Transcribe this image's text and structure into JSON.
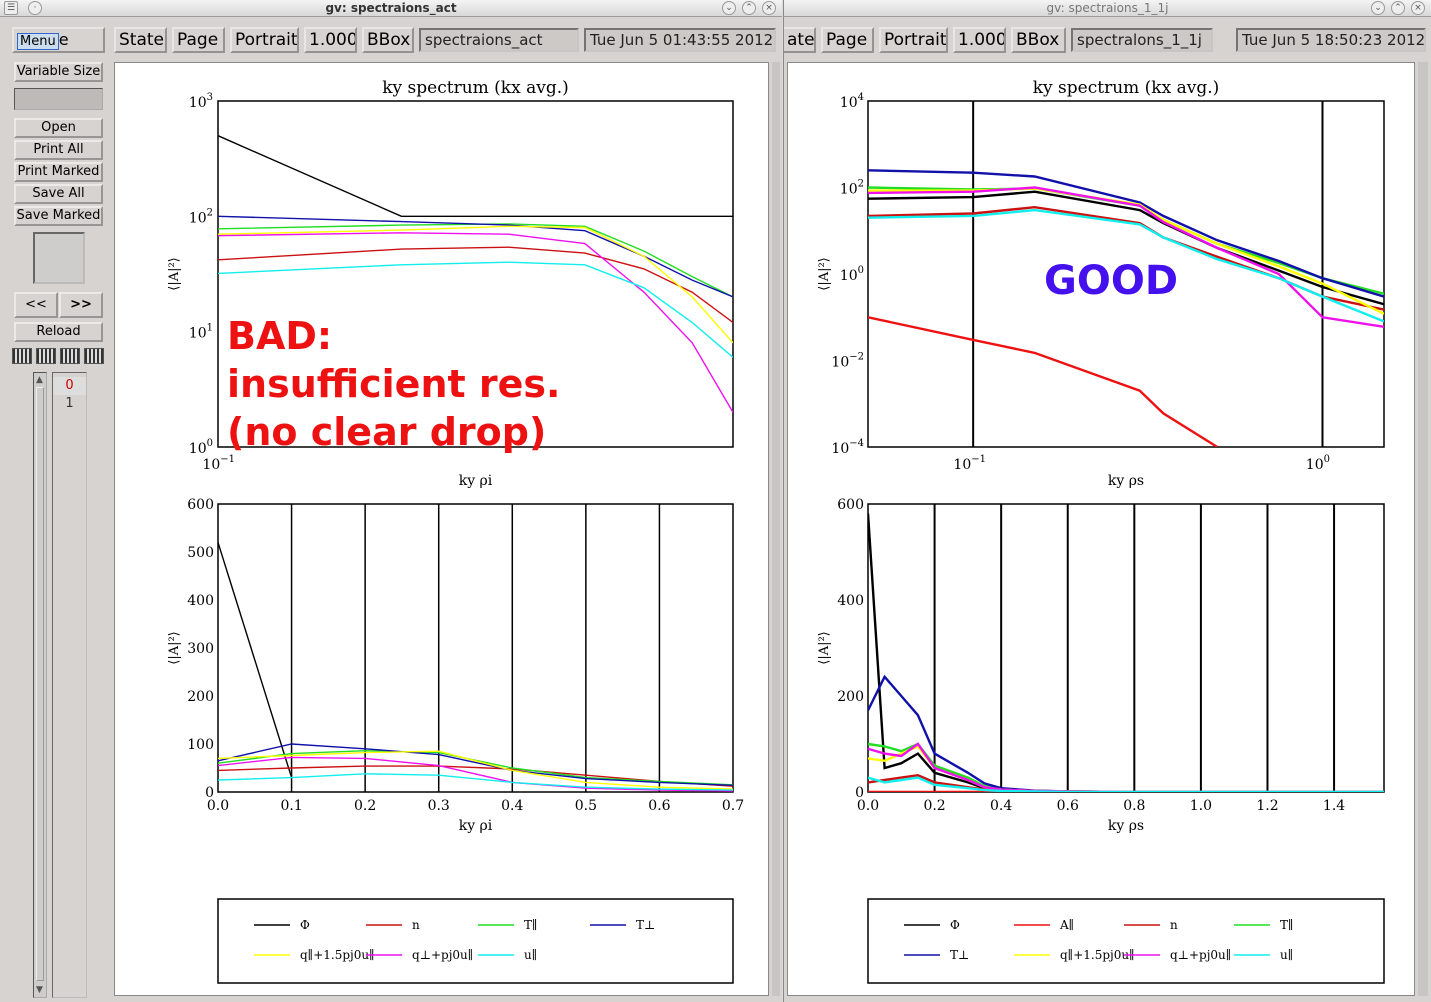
{
  "left_window": {
    "title": "gv: spectraions_act",
    "menu": "Menu",
    "menu_tail": "e",
    "toolbar": {
      "state": "State",
      "page": "Page",
      "orient": "Portrait",
      "zoom": "1.000",
      "bbox": "BBox",
      "filename": "spectraions_act",
      "date": "Tue Jun  5 01:43:55 2012"
    },
    "side": {
      "variable_size": "Variable Size",
      "open": "Open",
      "print_all": "Print All",
      "print_marked": "Print Marked",
      "save_all": "Save All",
      "save_marked": "Save Marked",
      "prev": "<<",
      "next": ">>",
      "reload": "Reload",
      "pages": [
        "0",
        "1"
      ]
    }
  },
  "right_window": {
    "title": "gv: spectraions_1_1j",
    "toolbar": {
      "state": "ate",
      "page": "Page",
      "orient": "Portrait",
      "zoom": "1.000",
      "bbox": "BBox",
      "filename": "spectralons_1_1j",
      "date": "Tue Jun  5 18:50:23 2012"
    }
  },
  "annotations": {
    "bad_line1": "BAD:",
    "bad_line2": "insufficient res.",
    "bad_line3": "(no clear drop)",
    "good": "GOOD"
  },
  "colors": {
    "phi": "#000000",
    "n": "#cc1111",
    "Tpar": "#22dd22",
    "Tperp": "#1111aa",
    "qpar": "#ffff00",
    "qperp": "#ee11ee",
    "upar": "#11eeee",
    "uperp": "#77cccc",
    "A": "#ee1111",
    "bad": "#ee1111",
    "good": "#4411ee"
  },
  "chart_data": [
    {
      "type": "line",
      "title": "ky spectrum (kx avg.)",
      "xlabel": "ky ρi",
      "ylabel": "⟨|A|²⟩",
      "log_x": true,
      "log_y": true,
      "xlim": [
        0.1,
        0.7
      ],
      "ylim": [
        1,
        1000
      ],
      "x": [
        0.1,
        0.2,
        0.3,
        0.4,
        0.5,
        0.6,
        0.7
      ],
      "series": [
        {
          "name": "Φ",
          "values": [
            500,
            100,
            100,
            100,
            100,
            100,
            100
          ]
        },
        {
          "name": "n",
          "values": [
            42,
            52,
            54,
            48,
            35,
            22,
            12
          ]
        },
        {
          "name": "T∥",
          "values": [
            78,
            84,
            86,
            82,
            50,
            30,
            20
          ]
        },
        {
          "name": "T⊥",
          "values": [
            100,
            90,
            84,
            75,
            45,
            28,
            20
          ]
        },
        {
          "name": "q∥+1.5pj0u∥",
          "values": [
            70,
            76,
            82,
            80,
            45,
            20,
            8
          ]
        },
        {
          "name": "q⊥+pj0u∥",
          "values": [
            68,
            72,
            70,
            58,
            22,
            8,
            2
          ]
        },
        {
          "name": "u∥",
          "values": [
            32,
            38,
            40,
            38,
            24,
            12,
            6
          ]
        }
      ]
    },
    {
      "type": "line",
      "xlabel": "ky ρi",
      "ylabel": "⟨|A|²⟩",
      "xlim": [
        0,
        0.7
      ],
      "ylim": [
        0,
        600
      ],
      "x": [
        0,
        0.1,
        0.2,
        0.3,
        0.4,
        0.5,
        0.6,
        0.7
      ],
      "series": [
        {
          "name": "Φ",
          "values": [
            520,
            30,
            null,
            null,
            null,
            null,
            null,
            null
          ]
        },
        {
          "name": "n",
          "values": [
            45,
            50,
            54,
            54,
            48,
            35,
            22,
            12
          ]
        },
        {
          "name": "T∥",
          "values": [
            60,
            80,
            86,
            82,
            50,
            30,
            22,
            15
          ]
        },
        {
          "name": "T⊥",
          "values": [
            65,
            100,
            90,
            78,
            45,
            28,
            20,
            14
          ]
        },
        {
          "name": "q∥+1.5pj0u∥",
          "values": [
            70,
            76,
            82,
            85,
            45,
            20,
            10,
            6
          ]
        },
        {
          "name": "q⊥+pj0u∥",
          "values": [
            55,
            72,
            70,
            55,
            20,
            8,
            4,
            2
          ]
        },
        {
          "name": "u∥",
          "values": [
            25,
            30,
            38,
            35,
            20,
            10,
            6,
            4
          ]
        }
      ]
    },
    {
      "type": "line",
      "title": "ky spectrum (kx avg.)",
      "xlabel": "ky ρs",
      "ylabel": "⟨|A|²⟩",
      "log_x": true,
      "log_y": true,
      "xlim": [
        0.05,
        1.5
      ],
      "ylim": [
        0.0001,
        10000
      ],
      "x": [
        0.05,
        0.1,
        0.15,
        0.3,
        0.35,
        0.5,
        0.75,
        1.0,
        1.5
      ],
      "series": [
        {
          "name": "Φ",
          "values": [
            55,
            60,
            80,
            30,
            15,
            4,
            1.2,
            0.5,
            0.2
          ]
        },
        {
          "name": "A∥",
          "values": [
            0.1,
            0.03,
            0.015,
            0.002,
            0.0006,
            0.0001,
            null,
            null,
            null
          ]
        },
        {
          "name": "n",
          "values": [
            22,
            25,
            35,
            15,
            7,
            2.5,
            0.8,
            0.3,
            0.15
          ]
        },
        {
          "name": "T∥",
          "values": [
            100,
            90,
            95,
            38,
            18,
            5,
            1.8,
            0.8,
            0.35
          ]
        },
        {
          "name": "T⊥",
          "values": [
            250,
            220,
            180,
            45,
            22,
            6,
            2,
            0.8,
            0.3
          ]
        },
        {
          "name": "q∥+1.5pj0u∥",
          "values": [
            85,
            85,
            95,
            40,
            18,
            5,
            1.5,
            0.6,
            0.12
          ]
        },
        {
          "name": "q⊥+pj0u∥",
          "values": [
            75,
            80,
            100,
            38,
            16,
            4,
            1.0,
            0.1,
            0.06
          ]
        },
        {
          "name": "u∥",
          "values": [
            20,
            22,
            30,
            14,
            7,
            2.2,
            0.8,
            0.3,
            0.08
          ]
        }
      ]
    },
    {
      "type": "line",
      "xlabel": "ky ρs",
      "ylabel": "⟨|A|²⟩",
      "xlim": [
        0,
        1.55
      ],
      "ylim": [
        0,
        600
      ],
      "x": [
        0,
        0.05,
        0.1,
        0.15,
        0.2,
        0.3,
        0.35,
        0.4,
        0.5,
        0.6,
        0.8,
        1.0,
        1.2,
        1.55
      ],
      "series": [
        {
          "name": "Φ",
          "values": [
            580,
            50,
            60,
            80,
            40,
            20,
            8,
            4,
            2,
            1,
            0,
            0,
            0,
            0
          ]
        },
        {
          "name": "A∥",
          "values": [
            0,
            0,
            0,
            0,
            0,
            0,
            0,
            0,
            0,
            0,
            0,
            0,
            0,
            0
          ]
        },
        {
          "name": "n",
          "values": [
            20,
            25,
            30,
            35,
            20,
            10,
            5,
            3,
            1,
            0,
            0,
            0,
            0,
            0
          ]
        },
        {
          "name": "T∥",
          "values": [
            100,
            95,
            85,
            100,
            55,
            30,
            12,
            6,
            2,
            1,
            0,
            0,
            0,
            0
          ]
        },
        {
          "name": "T⊥",
          "values": [
            170,
            240,
            200,
            160,
            80,
            40,
            18,
            8,
            3,
            1,
            0,
            0,
            0,
            0
          ]
        },
        {
          "name": "q∥+1.5pj0u∥",
          "values": [
            70,
            65,
            80,
            95,
            50,
            25,
            10,
            5,
            2,
            1,
            0,
            0,
            0,
            0
          ]
        },
        {
          "name": "q⊥+pj0u∥",
          "values": [
            90,
            80,
            75,
            100,
            50,
            25,
            10,
            5,
            2,
            1,
            0,
            0,
            0,
            0
          ]
        },
        {
          "name": "u∥",
          "values": [
            30,
            20,
            25,
            30,
            15,
            8,
            4,
            2,
            1,
            0,
            0,
            0,
            0,
            0
          ]
        }
      ]
    }
  ]
}
